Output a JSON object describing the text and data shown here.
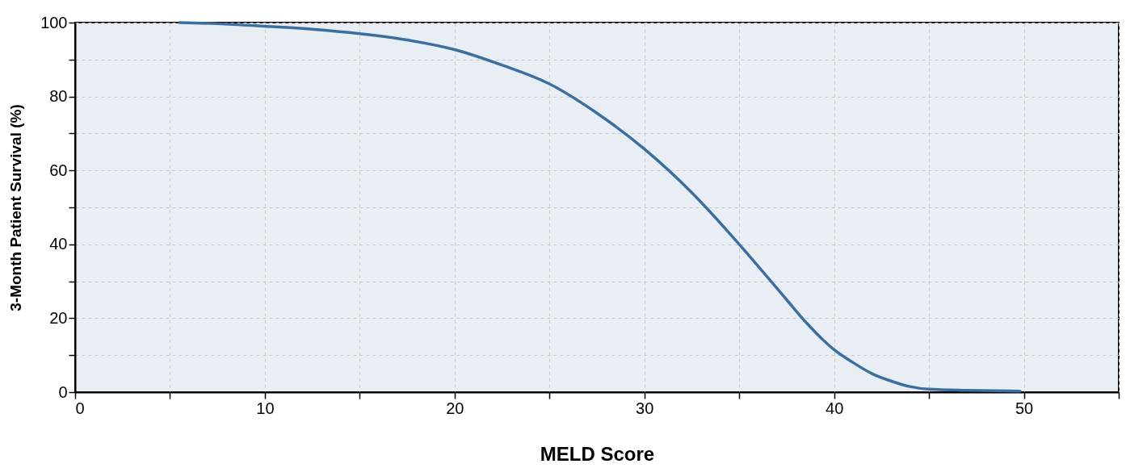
{
  "chart_data": {
    "type": "line",
    "xlabel": "MELD Score",
    "ylabel": "3-Month Patient Survival (%)",
    "x": [
      5.5,
      7.5,
      10,
      12.5,
      15,
      17.5,
      20,
      22.5,
      25,
      27.5,
      30,
      32.5,
      35,
      37.5,
      38.5,
      40,
      41,
      42,
      43,
      44,
      45,
      47,
      49.8
    ],
    "series": [
      {
        "color": "#3a6f9f",
        "values": [
          100,
          99.7,
          99,
          98.2,
          97,
          95.3,
          92.7,
          88.5,
          83.4,
          75.5,
          65.8,
          54,
          40,
          25,
          19,
          11.5,
          8,
          5,
          3,
          1.5,
          0.8,
          0.5,
          0.3
        ]
      }
    ],
    "xlim": [
      0,
      55
    ],
    "xticks": [
      0,
      {
        "value": 5,
        "label": null
      },
      10,
      {
        "value": 15,
        "label": null
      },
      20,
      {
        "value": 25,
        "label": null
      },
      30,
      {
        "value": 35,
        "label": null
      },
      40,
      {
        "value": 45,
        "label": null
      },
      50,
      {
        "value": 55,
        "label": null
      }
    ],
    "ylim": [
      0,
      100
    ],
    "yticks": [
      0,
      {
        "value": 10,
        "label": null
      },
      20,
      {
        "value": 30,
        "label": null
      },
      40,
      {
        "value": 50,
        "label": null
      },
      60,
      {
        "value": 70,
        "label": null
      },
      80,
      {
        "value": 90,
        "label": null
      },
      100
    ],
    "grid": true,
    "line_style": "solid",
    "marker": "none"
  }
}
